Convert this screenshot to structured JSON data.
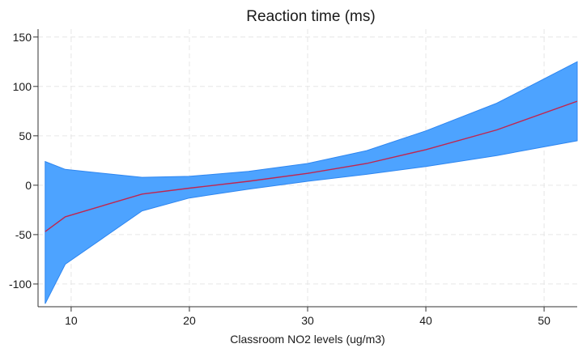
{
  "chart_data": {
    "type": "area",
    "title": "Reaction time (ms)",
    "xlabel": "Classroom NO2 levels (ug/m3)",
    "ylabel": "",
    "xlim": [
      7.2,
      52.8
    ],
    "ylim": [
      -123,
      158
    ],
    "x_ticks": [
      "10",
      "20",
      "30",
      "40",
      "50"
    ],
    "y_ticks": [
      "150",
      "100",
      "50",
      "0",
      "-50",
      "-100"
    ],
    "grid": true,
    "colors": {
      "band": "#4da3ff",
      "band_edge": "#2e86f0",
      "line": "#c0264f",
      "grid": "#e6e6e6",
      "axis": "#333333"
    },
    "x": [
      7.8,
      9.5,
      16,
      20,
      25,
      30,
      35,
      40,
      46,
      52.8
    ],
    "series": [
      {
        "role": "estimate",
        "values": [
          -47,
          -32,
          -9,
          -3,
          4,
          12,
          22,
          36,
          56,
          85
        ]
      },
      {
        "role": "upper",
        "values": [
          24,
          16,
          8,
          9,
          14,
          22,
          35,
          55,
          83,
          125
        ]
      },
      {
        "role": "lower",
        "values": [
          -120,
          -80,
          -26,
          -13,
          -4,
          4,
          11,
          19,
          30,
          45
        ]
      }
    ]
  }
}
